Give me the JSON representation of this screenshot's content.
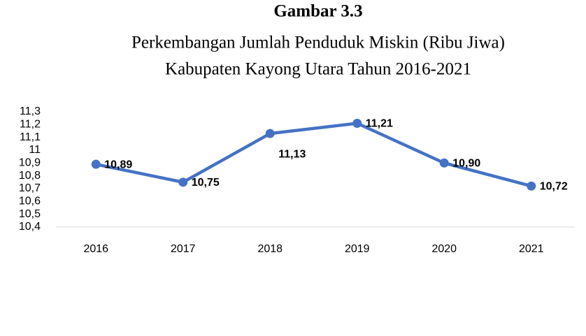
{
  "chart_data": {
    "type": "line",
    "title": "Gambar 3.3",
    "subtitle": [
      "Perkembangan Jumlah Penduduk Miskin (Ribu Jiwa)",
      "Kabupaten Kayong Utara Tahun 2016-2021"
    ],
    "categories": [
      "2016",
      "2017",
      "2018",
      "2019",
      "2020",
      "2021"
    ],
    "series": [
      {
        "name": "Jumlah Penduduk Miskin",
        "color": "#4472c4",
        "values": [
          10.89,
          10.75,
          11.13,
          11.21,
          10.9,
          10.72
        ],
        "value_labels": [
          "10,89",
          "10,75",
          "11,13",
          "11,21",
          "10,90",
          "10,72"
        ]
      }
    ],
    "ylim": [
      10.4,
      11.3
    ],
    "yticks": [
      {
        "value": 10.4,
        "label": "10,4"
      },
      {
        "value": 10.5,
        "label": "10,5"
      },
      {
        "value": 10.6,
        "label": "10,6"
      },
      {
        "value": 10.7,
        "label": "10,7"
      },
      {
        "value": 10.8,
        "label": "10,8"
      },
      {
        "value": 10.9,
        "label": "10,9"
      },
      11,
      {
        "value": 11.1,
        "label": "11,1"
      },
      {
        "value": 11.2,
        "label": "11,2"
      },
      {
        "value": 11.3,
        "label": "11,3"
      }
    ],
    "grid": false
  }
}
